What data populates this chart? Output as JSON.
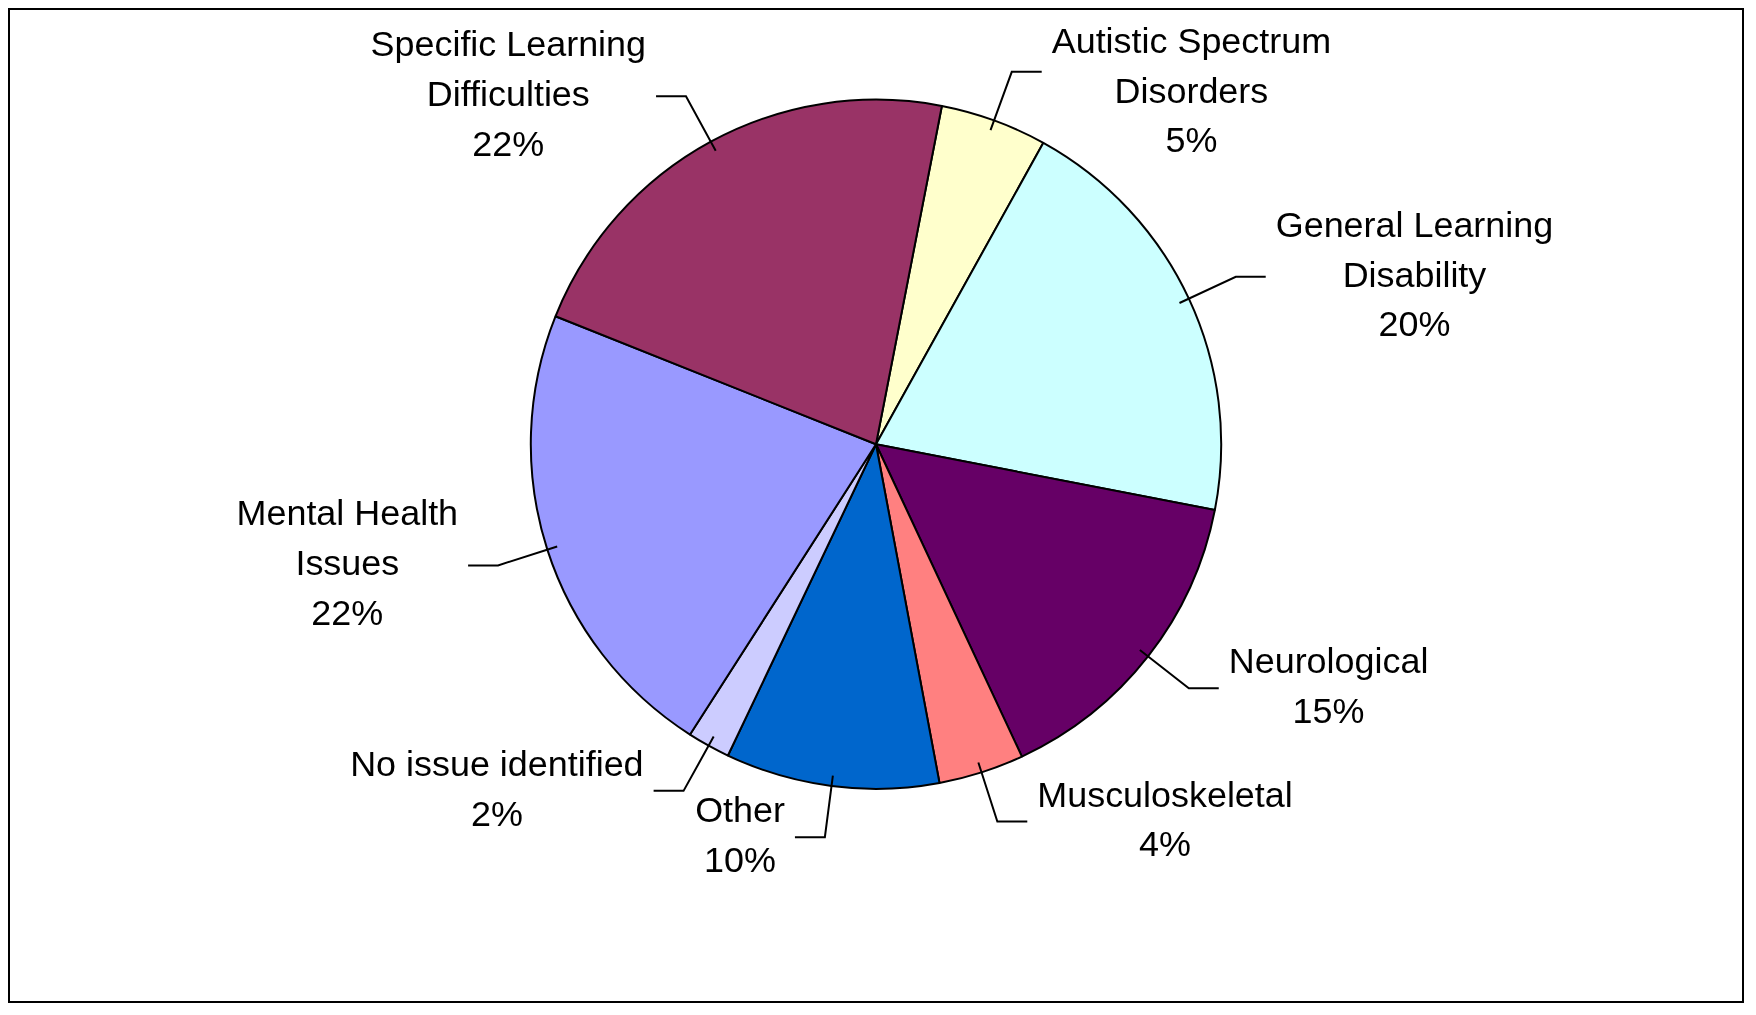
{
  "chart_data": {
    "type": "pie",
    "categories": [
      "Autistic Spectrum Disorders",
      "General Learning Disability",
      "Neurological",
      "Musculoskeletal",
      "Other",
      "No issue identified",
      "Mental Health Issues",
      "Specific Learning Difficulties"
    ],
    "values": [
      5,
      20,
      15,
      4,
      10,
      2,
      22,
      22
    ],
    "value_labels": [
      "5%",
      "20%",
      "15%",
      "4%",
      "10%",
      "2%",
      "22%",
      "22%"
    ],
    "colors": [
      "#ffffcc",
      "#ccffff",
      "#660066",
      "#ff8080",
      "#0066cc",
      "#ccccff",
      "#9999ff",
      "#993366"
    ],
    "legend": false
  }
}
